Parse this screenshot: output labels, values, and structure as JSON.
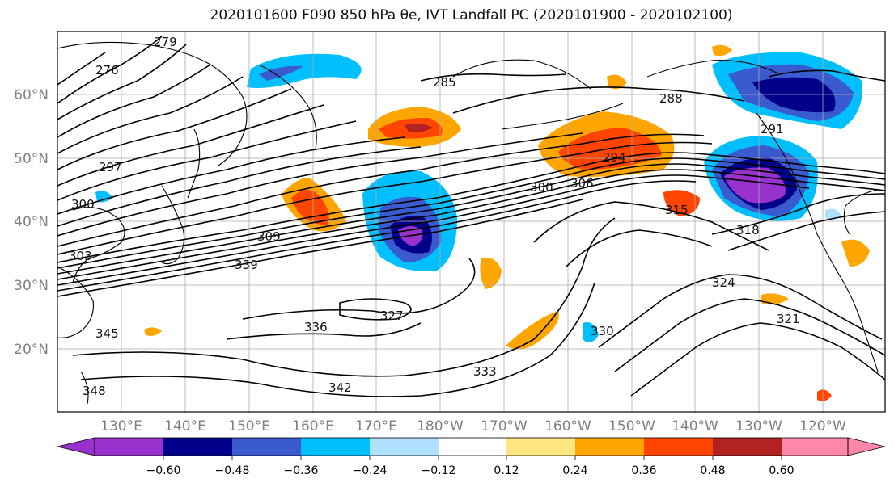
{
  "title": "2020101600 F090 850 hPa θe, IVT Landfall PC (2020101900 - 2020102100)",
  "map": {
    "lat_labels": [
      "60°N",
      "50°N",
      "40°N",
      "30°N",
      "20°N"
    ],
    "lon_labels": [
      "130°E",
      "140°E",
      "150°E",
      "160°E",
      "170°E",
      "180°W",
      "170°W",
      "160°W",
      "150°W",
      "140°W",
      "130°W",
      "120°W"
    ],
    "contour_labels": [
      "279",
      "276",
      "285",
      "288",
      "291",
      "294",
      "300",
      "306",
      "309",
      "303",
      "339",
      "345",
      "336",
      "327",
      "333",
      "342",
      "348",
      "315",
      "318",
      "321",
      "324",
      "330",
      "297",
      "300"
    ],
    "fill_colors": {
      "strong_positive": "#b22222",
      "positive": "#ff4500",
      "moderate_positive": "#ffa500",
      "weak_positive": "#ffe680",
      "weak_negative": "#b0e0ff",
      "moderate_negative": "#00bfff",
      "negative": "#3a5bcf",
      "strong_negative": "#00008b",
      "extreme_negative": "#9932cc"
    }
  },
  "colorbar": {
    "ticks": [
      "−0.60",
      "−0.48",
      "−0.36",
      "−0.24",
      "−0.12",
      "0.12",
      "0.24",
      "0.36",
      "0.48",
      "0.60"
    ],
    "colors": [
      "#9932cc",
      "#00008b",
      "#3a5bcf",
      "#00bfff",
      "#b0e0ff",
      "#ffffff",
      "#ffe680",
      "#ffa500",
      "#ff4500",
      "#b22222",
      "#ff88aa"
    ]
  }
}
